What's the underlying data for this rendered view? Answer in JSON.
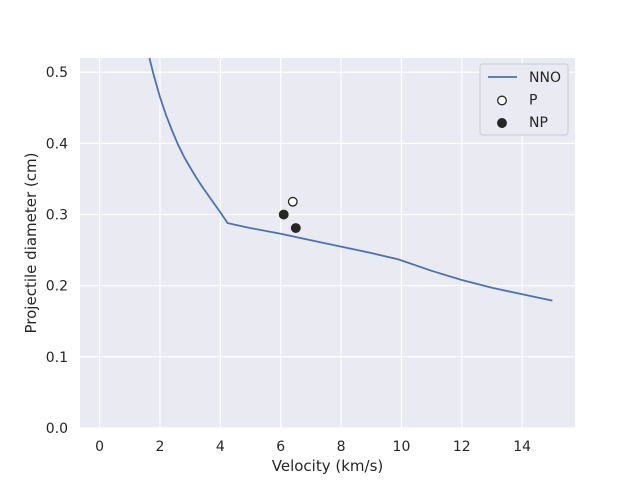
{
  "chart_data": {
    "type": "line",
    "xlabel": "Velocity (km/s)",
    "ylabel": "Projectile diameter (cm)",
    "xlim": [
      -0.65,
      15.75
    ],
    "ylim": [
      0.0,
      0.52
    ],
    "xticks": [
      "0",
      "2",
      "4",
      "6",
      "8",
      "10",
      "12",
      "14"
    ],
    "yticks": [
      "0.0",
      "0.1",
      "0.2",
      "0.3",
      "0.4",
      "0.5"
    ],
    "grid": true,
    "legend_position": "top-right",
    "series": [
      {
        "name": "NNO",
        "kind": "line",
        "color": "#4c72b0",
        "points": [
          [
            1.65,
            0.52
          ],
          [
            1.8,
            0.495
          ],
          [
            2.0,
            0.465
          ],
          [
            2.2,
            0.44
          ],
          [
            2.4,
            0.418
          ],
          [
            2.6,
            0.398
          ],
          [
            2.8,
            0.381
          ],
          [
            3.0,
            0.366
          ],
          [
            3.2,
            0.352
          ],
          [
            3.4,
            0.339
          ],
          [
            3.6,
            0.327
          ],
          [
            3.8,
            0.315
          ],
          [
            4.0,
            0.303
          ],
          [
            4.24,
            0.288
          ],
          [
            5.0,
            0.281
          ],
          [
            6.0,
            0.273
          ],
          [
            7.0,
            0.264
          ],
          [
            8.0,
            0.255
          ],
          [
            9.0,
            0.246
          ],
          [
            9.9,
            0.237
          ],
          [
            11.0,
            0.221
          ],
          [
            12.0,
            0.208
          ],
          [
            13.0,
            0.197
          ],
          [
            14.0,
            0.188
          ],
          [
            15.0,
            0.179
          ]
        ]
      },
      {
        "name": "P",
        "kind": "scatter",
        "marker": "open-circle",
        "color": "#262626",
        "points": [
          [
            6.4,
            0.318
          ]
        ]
      },
      {
        "name": "NP",
        "kind": "scatter",
        "marker": "filled-circle",
        "color": "#262626",
        "points": [
          [
            6.1,
            0.3
          ],
          [
            6.5,
            0.281
          ]
        ]
      }
    ]
  }
}
